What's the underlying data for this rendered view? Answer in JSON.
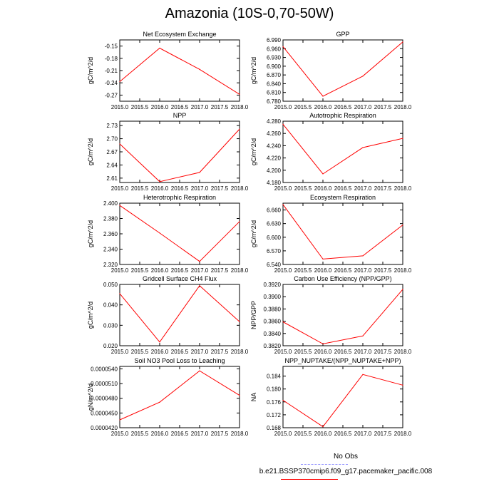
{
  "title": "Amazonia (10S-0,70-50W)",
  "legend": {
    "entries": [
      {
        "label": "No Obs",
        "color": "#9999ff",
        "dash": true
      },
      {
        "label": "b.e21.BSSP370cmip6.f09_g17.pacemaker_pacific.008",
        "color": "#ff0000",
        "dash": false
      }
    ]
  },
  "chart_data": [
    {
      "type": "line",
      "title": "Net Ecosystem Exchange",
      "ylabel": "gC/m^2/d",
      "x": [
        2015,
        2016,
        2017,
        2018
      ],
      "xlim": [
        2015,
        2018
      ],
      "xticks": [
        "2015.0",
        "2015.5",
        "2016.0",
        "2016.5",
        "2017.0",
        "2017.5",
        "2018.0"
      ],
      "ylim": [
        -0.285,
        -0.135
      ],
      "yticks": [
        -0.15,
        -0.18,
        -0.21,
        -0.24,
        -0.27
      ],
      "ytick_labels": [
        "-0.15",
        "-0.18",
        "-0.21",
        "-0.24",
        "-0.27"
      ],
      "series": [
        {
          "values": [
            -0.237,
            -0.155,
            -0.207,
            -0.268
          ],
          "color": "#ff0000"
        }
      ]
    },
    {
      "type": "line",
      "title": "GPP",
      "ylabel": "gC/m^2/d",
      "x": [
        2015,
        2016,
        2017,
        2018
      ],
      "xlim": [
        2015,
        2018
      ],
      "xticks": [
        "2015.0",
        "2015.5",
        "2016.0",
        "2016.5",
        "2017.0",
        "2017.5",
        "2018.0"
      ],
      "ylim": [
        6.78,
        6.99
      ],
      "yticks": [
        6.99,
        6.96,
        6.93,
        6.9,
        6.87,
        6.84,
        6.81,
        6.78
      ],
      "ytick_labels": [
        "6.990",
        "6.960",
        "6.930",
        "6.900",
        "6.870",
        "6.840",
        "6.810",
        "6.780"
      ],
      "series": [
        {
          "values": [
            6.967,
            6.797,
            6.866,
            6.983
          ],
          "color": "#ff0000"
        }
      ]
    },
    {
      "type": "line",
      "title": "NPP",
      "ylabel": "gC/m^2/d",
      "x": [
        2015,
        2016,
        2017,
        2018
      ],
      "xlim": [
        2015,
        2018
      ],
      "xticks": [
        "2015.0",
        "2015.5",
        "2016.0",
        "2016.5",
        "2017.0",
        "2017.5",
        "2018.0"
      ],
      "ylim": [
        2.6,
        2.74
      ],
      "yticks": [
        2.73,
        2.7,
        2.67,
        2.64,
        2.61
      ],
      "ytick_labels": [
        "2.73",
        "2.70",
        "2.67",
        "2.64",
        "2.61"
      ],
      "series": [
        {
          "values": [
            2.688,
            2.602,
            2.623,
            2.722
          ],
          "color": "#ff0000"
        }
      ]
    },
    {
      "type": "line",
      "title": "Autotrophic Respiration",
      "ylabel": "gC/m^2/d",
      "x": [
        2015,
        2016,
        2017,
        2018
      ],
      "xlim": [
        2015,
        2018
      ],
      "xticks": [
        "2015.0",
        "2015.5",
        "2016.0",
        "2016.5",
        "2017.0",
        "2017.5",
        "2018.0"
      ],
      "ylim": [
        4.18,
        4.28
      ],
      "yticks": [
        4.28,
        4.26,
        4.24,
        4.22,
        4.2,
        4.18
      ],
      "ytick_labels": [
        "4.280",
        "4.260",
        "4.240",
        "4.220",
        "4.200",
        "4.180"
      ],
      "series": [
        {
          "values": [
            4.275,
            4.194,
            4.237,
            4.252
          ],
          "color": "#ff0000"
        }
      ]
    },
    {
      "type": "line",
      "title": "Heterotrophic Respiration",
      "ylabel": "gC/m^2/d",
      "x": [
        2015,
        2016,
        2017,
        2018
      ],
      "xlim": [
        2015,
        2018
      ],
      "xticks": [
        "2015.0",
        "2015.5",
        "2016.0",
        "2016.5",
        "2017.0",
        "2017.5",
        "2018.0"
      ],
      "ylim": [
        2.32,
        2.4
      ],
      "yticks": [
        2.4,
        2.38,
        2.36,
        2.34,
        2.32
      ],
      "ytick_labels": [
        "2.400",
        "2.380",
        "2.360",
        "2.340",
        "2.320"
      ],
      "series": [
        {
          "values": [
            2.397,
            2.361,
            2.324,
            2.376
          ],
          "color": "#ff0000"
        }
      ]
    },
    {
      "type": "line",
      "title": "Ecosystem Respiration",
      "ylabel": "gC/m^2/d",
      "x": [
        2015,
        2016,
        2017,
        2018
      ],
      "xlim": [
        2015,
        2018
      ],
      "xticks": [
        "2015.0",
        "2015.5",
        "2016.0",
        "2016.5",
        "2017.0",
        "2017.5",
        "2018.0"
      ],
      "ylim": [
        6.54,
        6.675
      ],
      "yticks": [
        6.66,
        6.63,
        6.6,
        6.57,
        6.54
      ],
      "ytick_labels": [
        "6.660",
        "6.630",
        "6.600",
        "6.570",
        "6.540"
      ],
      "series": [
        {
          "values": [
            6.672,
            6.552,
            6.559,
            6.627
          ],
          "color": "#ff0000"
        }
      ]
    },
    {
      "type": "line",
      "title": "Gridcell Surface CH4 Flux",
      "ylabel": "gC/m^2/d",
      "x": [
        2015,
        2016,
        2017,
        2018
      ],
      "xlim": [
        2015,
        2018
      ],
      "xticks": [
        "2015.0",
        "2015.5",
        "2016.0",
        "2016.5",
        "2017.0",
        "2017.5",
        "2018.0"
      ],
      "ylim": [
        0.02,
        0.05
      ],
      "yticks": [
        0.05,
        0.04,
        0.03,
        0.02
      ],
      "ytick_labels": [
        "0.050",
        "0.040",
        "0.030",
        "0.020"
      ],
      "series": [
        {
          "values": [
            0.0455,
            0.0218,
            0.0494,
            0.0318
          ],
          "color": "#ff0000"
        }
      ]
    },
    {
      "type": "line",
      "title": "Carbon Use Efficiency (NPP/GPP)",
      "ylabel": "NPP/GPP",
      "x": [
        2015,
        2016,
        2017,
        2018
      ],
      "xlim": [
        2015,
        2018
      ],
      "xticks": [
        "2015.0",
        "2015.5",
        "2016.0",
        "2016.5",
        "2017.0",
        "2017.5",
        "2018.0"
      ],
      "ylim": [
        0.382,
        0.392
      ],
      "yticks": [
        0.392,
        0.39,
        0.388,
        0.386,
        0.384,
        0.382
      ],
      "ytick_labels": [
        "0.3920",
        "0.3900",
        "0.3880",
        "0.3860",
        "0.3840",
        "0.3820"
      ],
      "series": [
        {
          "values": [
            0.3859,
            0.3823,
            0.3836,
            0.3912
          ],
          "color": "#ff0000"
        }
      ]
    },
    {
      "type": "line",
      "title": "Soil NO3 Pool Loss to Leaching",
      "ylabel": "gN/m^2/d",
      "x": [
        2015,
        2016,
        2017,
        2018
      ],
      "xlim": [
        2015,
        2018
      ],
      "xticks": [
        "2015.0",
        "2015.5",
        "2016.0",
        "2016.5",
        "2017.0",
        "2017.5",
        "2018.0"
      ],
      "ylim": [
        4.2e-05,
        5.45e-05
      ],
      "yticks": [
        5.4e-05,
        5.1e-05,
        4.8e-05,
        4.5e-05,
        4.2e-05
      ],
      "ytick_labels": [
        "0.0000540",
        "0.0000510",
        "0.0000480",
        "0.0000450",
        "0.0000420"
      ],
      "series": [
        {
          "values": [
            4.36e-05,
            4.72e-05,
            5.36e-05,
            4.86e-05
          ],
          "color": "#ff0000"
        }
      ]
    },
    {
      "type": "line",
      "title": "NPP_NUPTAKE/(NPP_NUPTAKE+NPP)",
      "ylabel": "NA",
      "x": [
        2015,
        2016,
        2017,
        2018
      ],
      "xlim": [
        2015,
        2018
      ],
      "xticks": [
        "2015.0",
        "2015.5",
        "2016.0",
        "2016.5",
        "2017.0",
        "2017.5",
        "2018.0"
      ],
      "ylim": [
        0.168,
        0.187
      ],
      "yticks": [
        0.184,
        0.18,
        0.176,
        0.172,
        0.168
      ],
      "ytick_labels": [
        "0.184",
        "0.180",
        "0.176",
        "0.172",
        "0.168"
      ],
      "series": [
        {
          "values": [
            0.1765,
            0.1683,
            0.1845,
            0.1812
          ],
          "color": "#ff0000"
        }
      ]
    }
  ]
}
